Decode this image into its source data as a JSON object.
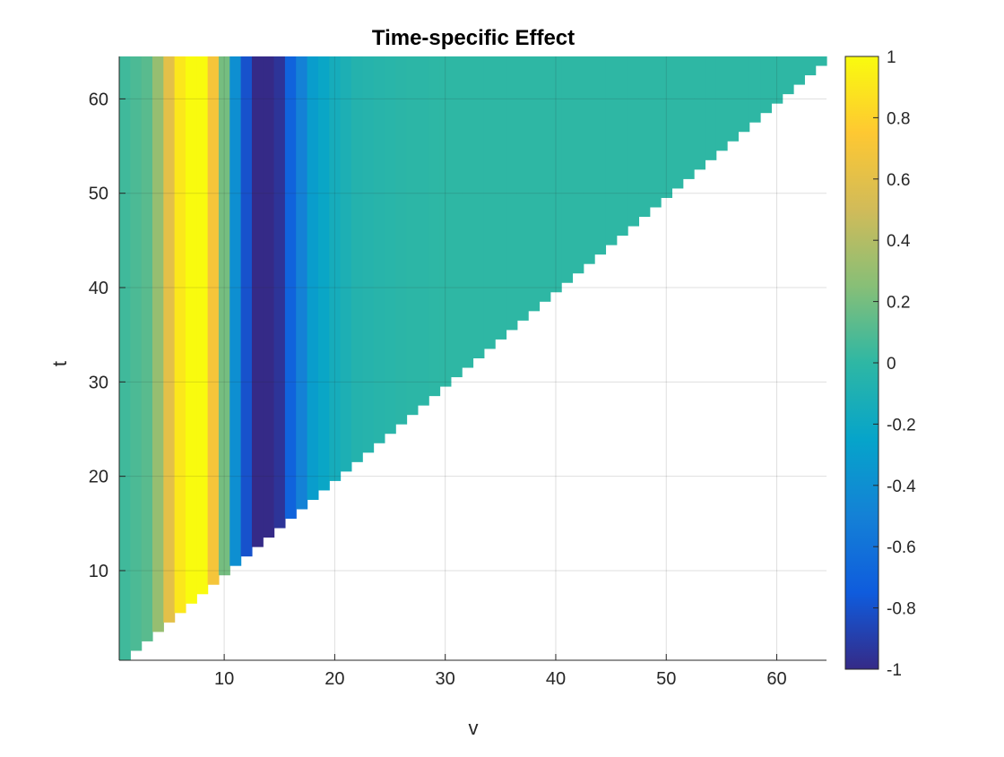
{
  "chart_data": {
    "type": "heatmap",
    "title": "Time-specific Effect",
    "xlabel": "v",
    "ylabel": "t",
    "xlim": [
      1,
      64
    ],
    "ylim": [
      1,
      64
    ],
    "xticks": [
      10,
      20,
      30,
      40,
      50,
      60
    ],
    "yticks": [
      10,
      20,
      30,
      40,
      50,
      60
    ],
    "grid": true,
    "region": "lower-triangle v <= t (white elsewhere)",
    "profile_over_v": {
      "v": [
        1,
        3,
        4,
        5,
        6,
        7,
        8,
        9,
        10,
        11,
        12,
        13,
        14,
        15,
        16,
        17,
        18,
        20,
        22,
        26,
        30,
        63
      ],
      "value": [
        0.05,
        0.12,
        0.3,
        0.6,
        0.9,
        1.0,
        1.0,
        0.7,
        0.2,
        -0.4,
        -0.8,
        -1.0,
        -1.0,
        -0.95,
        -0.7,
        -0.5,
        -0.3,
        -0.15,
        -0.06,
        -0.02,
        0.0,
        0.0
      ]
    },
    "colorbar": {
      "min": -1,
      "max": 1,
      "ticks": [
        -1,
        -0.8,
        -0.6,
        -0.4,
        -0.2,
        0,
        0.2,
        0.4,
        0.6,
        0.8,
        1
      ],
      "tick_labels": [
        "-1",
        "-0.8",
        "-0.6",
        "-0.4",
        "-0.2",
        "0",
        "0.2",
        "0.4",
        "0.6",
        "0.8",
        "1"
      ],
      "colormap": "parula",
      "colormap_stops": [
        "#352a87",
        "#0f5cdd",
        "#1481d6",
        "#06a4ca",
        "#2eb7a4",
        "#87bf77",
        "#d1bb59",
        "#fec832",
        "#f9fb0e"
      ]
    }
  }
}
